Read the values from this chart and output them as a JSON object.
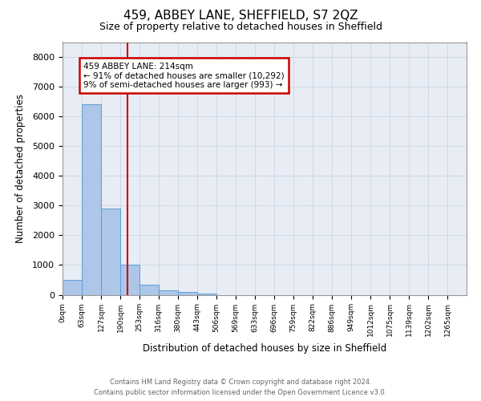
{
  "title": "459, ABBEY LANE, SHEFFIELD, S7 2QZ",
  "subtitle": "Size of property relative to detached houses in Sheffield",
  "xlabel": "Distribution of detached houses by size in Sheffield",
  "ylabel": "Number of detached properties",
  "bar_values": [
    500,
    6400,
    2900,
    1000,
    350,
    150,
    100,
    50,
    0,
    0,
    0,
    0,
    0,
    0,
    0,
    0,
    0,
    0,
    0,
    0
  ],
  "bin_labels": [
    "0sqm",
    "63sqm",
    "127sqm",
    "190sqm",
    "253sqm",
    "316sqm",
    "380sqm",
    "443sqm",
    "506sqm",
    "569sqm",
    "633sqm",
    "696sqm",
    "759sqm",
    "822sqm",
    "886sqm",
    "949sqm",
    "1012sqm",
    "1075sqm",
    "1139sqm",
    "1202sqm",
    "1265sqm"
  ],
  "bar_color": "#aec6e8",
  "bar_edgecolor": "#5a9fd4",
  "ylim_max": 8500,
  "yticks": [
    0,
    1000,
    2000,
    3000,
    4000,
    5000,
    6000,
    7000,
    8000
  ],
  "property_size": 214,
  "property_label": "459 ABBEY LANE: 214sqm",
  "annotation_line1": "← 91% of detached houses are smaller (10,292)",
  "annotation_line2": "9% of semi-detached houses are larger (993) →",
  "red_line_color": "#cc0000",
  "annotation_box_color": "#cc0000",
  "grid_color": "#cdd5e0",
  "footer_line1": "Contains HM Land Registry data © Crown copyright and database right 2024.",
  "footer_line2": "Contains public sector information licensed under the Open Government Licence v3.0.",
  "bin_width": 63,
  "n_bins": 20,
  "bin_starts": [
    0,
    63,
    127,
    190,
    253,
    316,
    380,
    443,
    506,
    569,
    633,
    696,
    759,
    822,
    886,
    949,
    1012,
    1075,
    1139,
    1202
  ]
}
